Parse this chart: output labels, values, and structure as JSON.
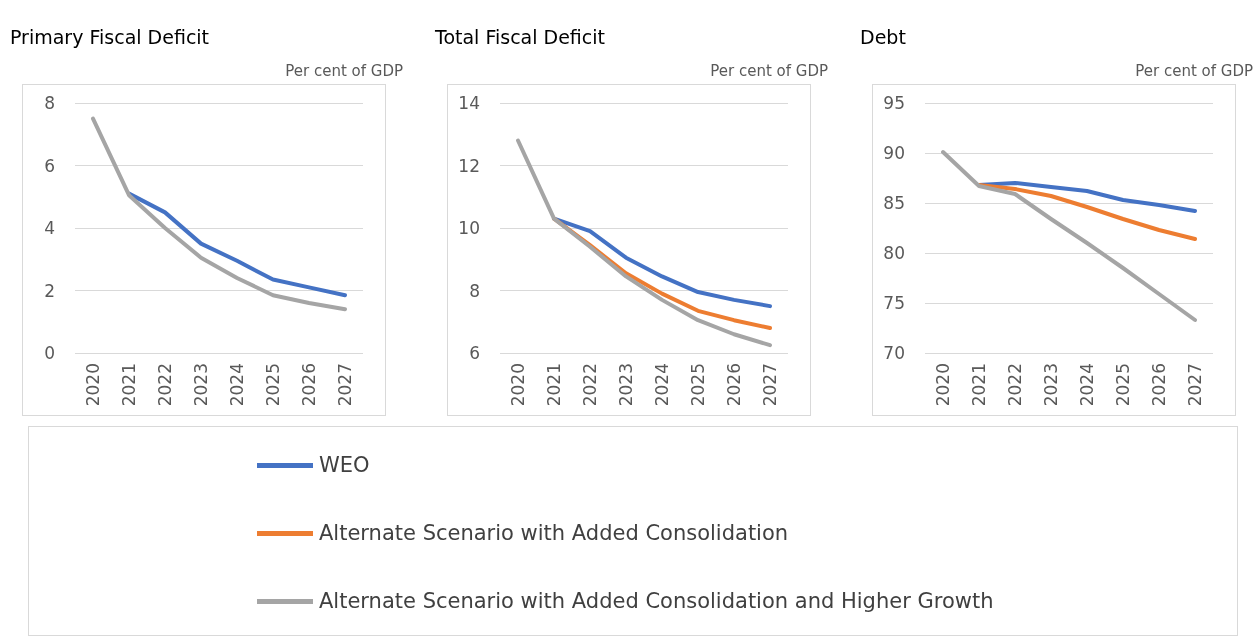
{
  "chart_data": [
    {
      "type": "line",
      "title": "Primary Fiscal Deficit",
      "ylabel": "Per cent of GDP",
      "categories": [
        "2020",
        "2021",
        "2022",
        "2023",
        "2024",
        "2025",
        "2026",
        "2027"
      ],
      "ylim": [
        0,
        8
      ],
      "yticks": [
        0,
        2,
        4,
        6,
        8
      ],
      "grid": "y",
      "legend": "bottom",
      "marker": "none",
      "line_style": "solid",
      "series": [
        {
          "name": "WEO",
          "color": "#4472c4",
          "values": [
            null,
            5.1,
            4.5,
            3.5,
            2.95,
            2.35,
            2.1,
            1.85
          ]
        },
        {
          "name": "Alternate Scenario with Added Consolidation",
          "color": "#ed7d31",
          "values": [
            null,
            null,
            null,
            null,
            null,
            null,
            null,
            null
          ]
        },
        {
          "name": "Alternate Scenario with Added Consolidation and Higher Growth",
          "color": "#a5a5a5",
          "values": [
            7.5,
            5.05,
            4.0,
            3.05,
            2.4,
            1.85,
            1.6,
            1.4
          ]
        }
      ]
    },
    {
      "type": "line",
      "title": "Total Fiscal Deficit",
      "ylabel": "Per cent of GDP",
      "categories": [
        "2020",
        "2021",
        "2022",
        "2023",
        "2024",
        "2025",
        "2026",
        "2027"
      ],
      "ylim": [
        6,
        14
      ],
      "yticks": [
        6,
        8,
        10,
        12,
        14
      ],
      "grid": "y",
      "marker": "none",
      "line_style": "solid",
      "series": [
        {
          "color": "#4472c4",
          "values": [
            null,
            10.3,
            9.9,
            9.05,
            8.45,
            7.95,
            7.7,
            7.5
          ]
        },
        {
          "color": "#ed7d31",
          "values": [
            null,
            10.3,
            9.45,
            8.55,
            7.9,
            7.35,
            7.05,
            6.8
          ]
        },
        {
          "color": "#a5a5a5",
          "values": [
            12.8,
            10.3,
            9.4,
            8.45,
            7.7,
            7.05,
            6.6,
            6.25
          ]
        }
      ]
    },
    {
      "type": "line",
      "title": "Debt",
      "ylabel": "Per cent of GDP",
      "categories": [
        "2020",
        "2021",
        "2022",
        "2023",
        "2024",
        "2025",
        "2026",
        "2027"
      ],
      "ylim": [
        70,
        95
      ],
      "yticks": [
        70,
        75,
        80,
        85,
        90,
        95
      ],
      "grid": "y",
      "marker": "none",
      "line_style": "solid",
      "series": [
        {
          "color": "#4472c4",
          "values": [
            null,
            86.8,
            87.0,
            86.6,
            86.2,
            85.3,
            84.8,
            84.2
          ]
        },
        {
          "color": "#ed7d31",
          "values": [
            null,
            86.8,
            86.4,
            85.7,
            84.6,
            83.4,
            82.3,
            81.4
          ]
        },
        {
          "color": "#a5a5a5",
          "values": [
            90.1,
            86.7,
            85.9,
            83.4,
            81.0,
            78.5,
            75.9,
            73.3
          ]
        }
      ]
    }
  ]
}
